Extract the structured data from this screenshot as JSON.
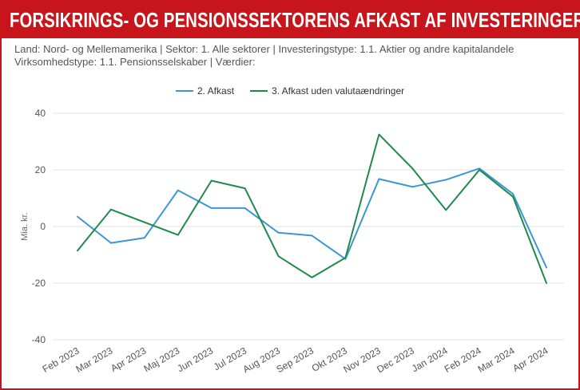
{
  "header": {
    "title": "FORSIKRINGS- OG PENSIONSSEKTORENS AFKAST AF INVESTERINGER",
    "subtitle_line1": "Land: Nord- og Mellemamerika | Sektor: 1. Alle sektorer | Investeringstype: 1.1. Aktier og andre kapitalandele",
    "subtitle_line2": "Virksomhedstype: 1.1. Pensionsselskaber | Værdier:"
  },
  "colors": {
    "brand_red": "#c8151b",
    "series_afkast": "#3a97d4",
    "series_uden_valuta": "#1f8a4c",
    "grid": "#e3e3e3"
  },
  "chart_data": {
    "type": "line",
    "title": "FORSIKRINGS- OG PENSIONSSEKTORENS AFKAST AF INVESTERINGER",
    "xlabel": "",
    "ylabel": "Mia. kr.",
    "ylim": [
      -40,
      40
    ],
    "yticks": [
      40,
      20,
      0,
      -20,
      -40
    ],
    "grid": true,
    "legend_position": "top-center",
    "categories": [
      "Feb 2023",
      "Mar 2023",
      "Apr 2023",
      "Maj 2023",
      "Jun 2023",
      "Jul 2023",
      "Aug 2023",
      "Sep 2023",
      "Okt 2023",
      "Nov 2023",
      "Dec 2023",
      "Jan 2024",
      "Feb 2024",
      "Mar 2024",
      "Apr 2024"
    ],
    "series": [
      {
        "name": "2. Afkast",
        "color": "#3a97d4",
        "values": [
          3.5,
          -5.8,
          -4,
          12.8,
          6.5,
          6.5,
          -2.2,
          -3.2,
          -11.5,
          16.8,
          14,
          16.5,
          20.5,
          11.5,
          -14.5
        ]
      },
      {
        "name": "3. Afkast uden valutaændringer",
        "color": "#1f8a4c",
        "values": [
          -8.5,
          6,
          1.5,
          -3,
          16.2,
          13.5,
          -10.5,
          -18,
          -11,
          32.5,
          20.5,
          5.8,
          20,
          10.5,
          -20
        ]
      }
    ]
  }
}
